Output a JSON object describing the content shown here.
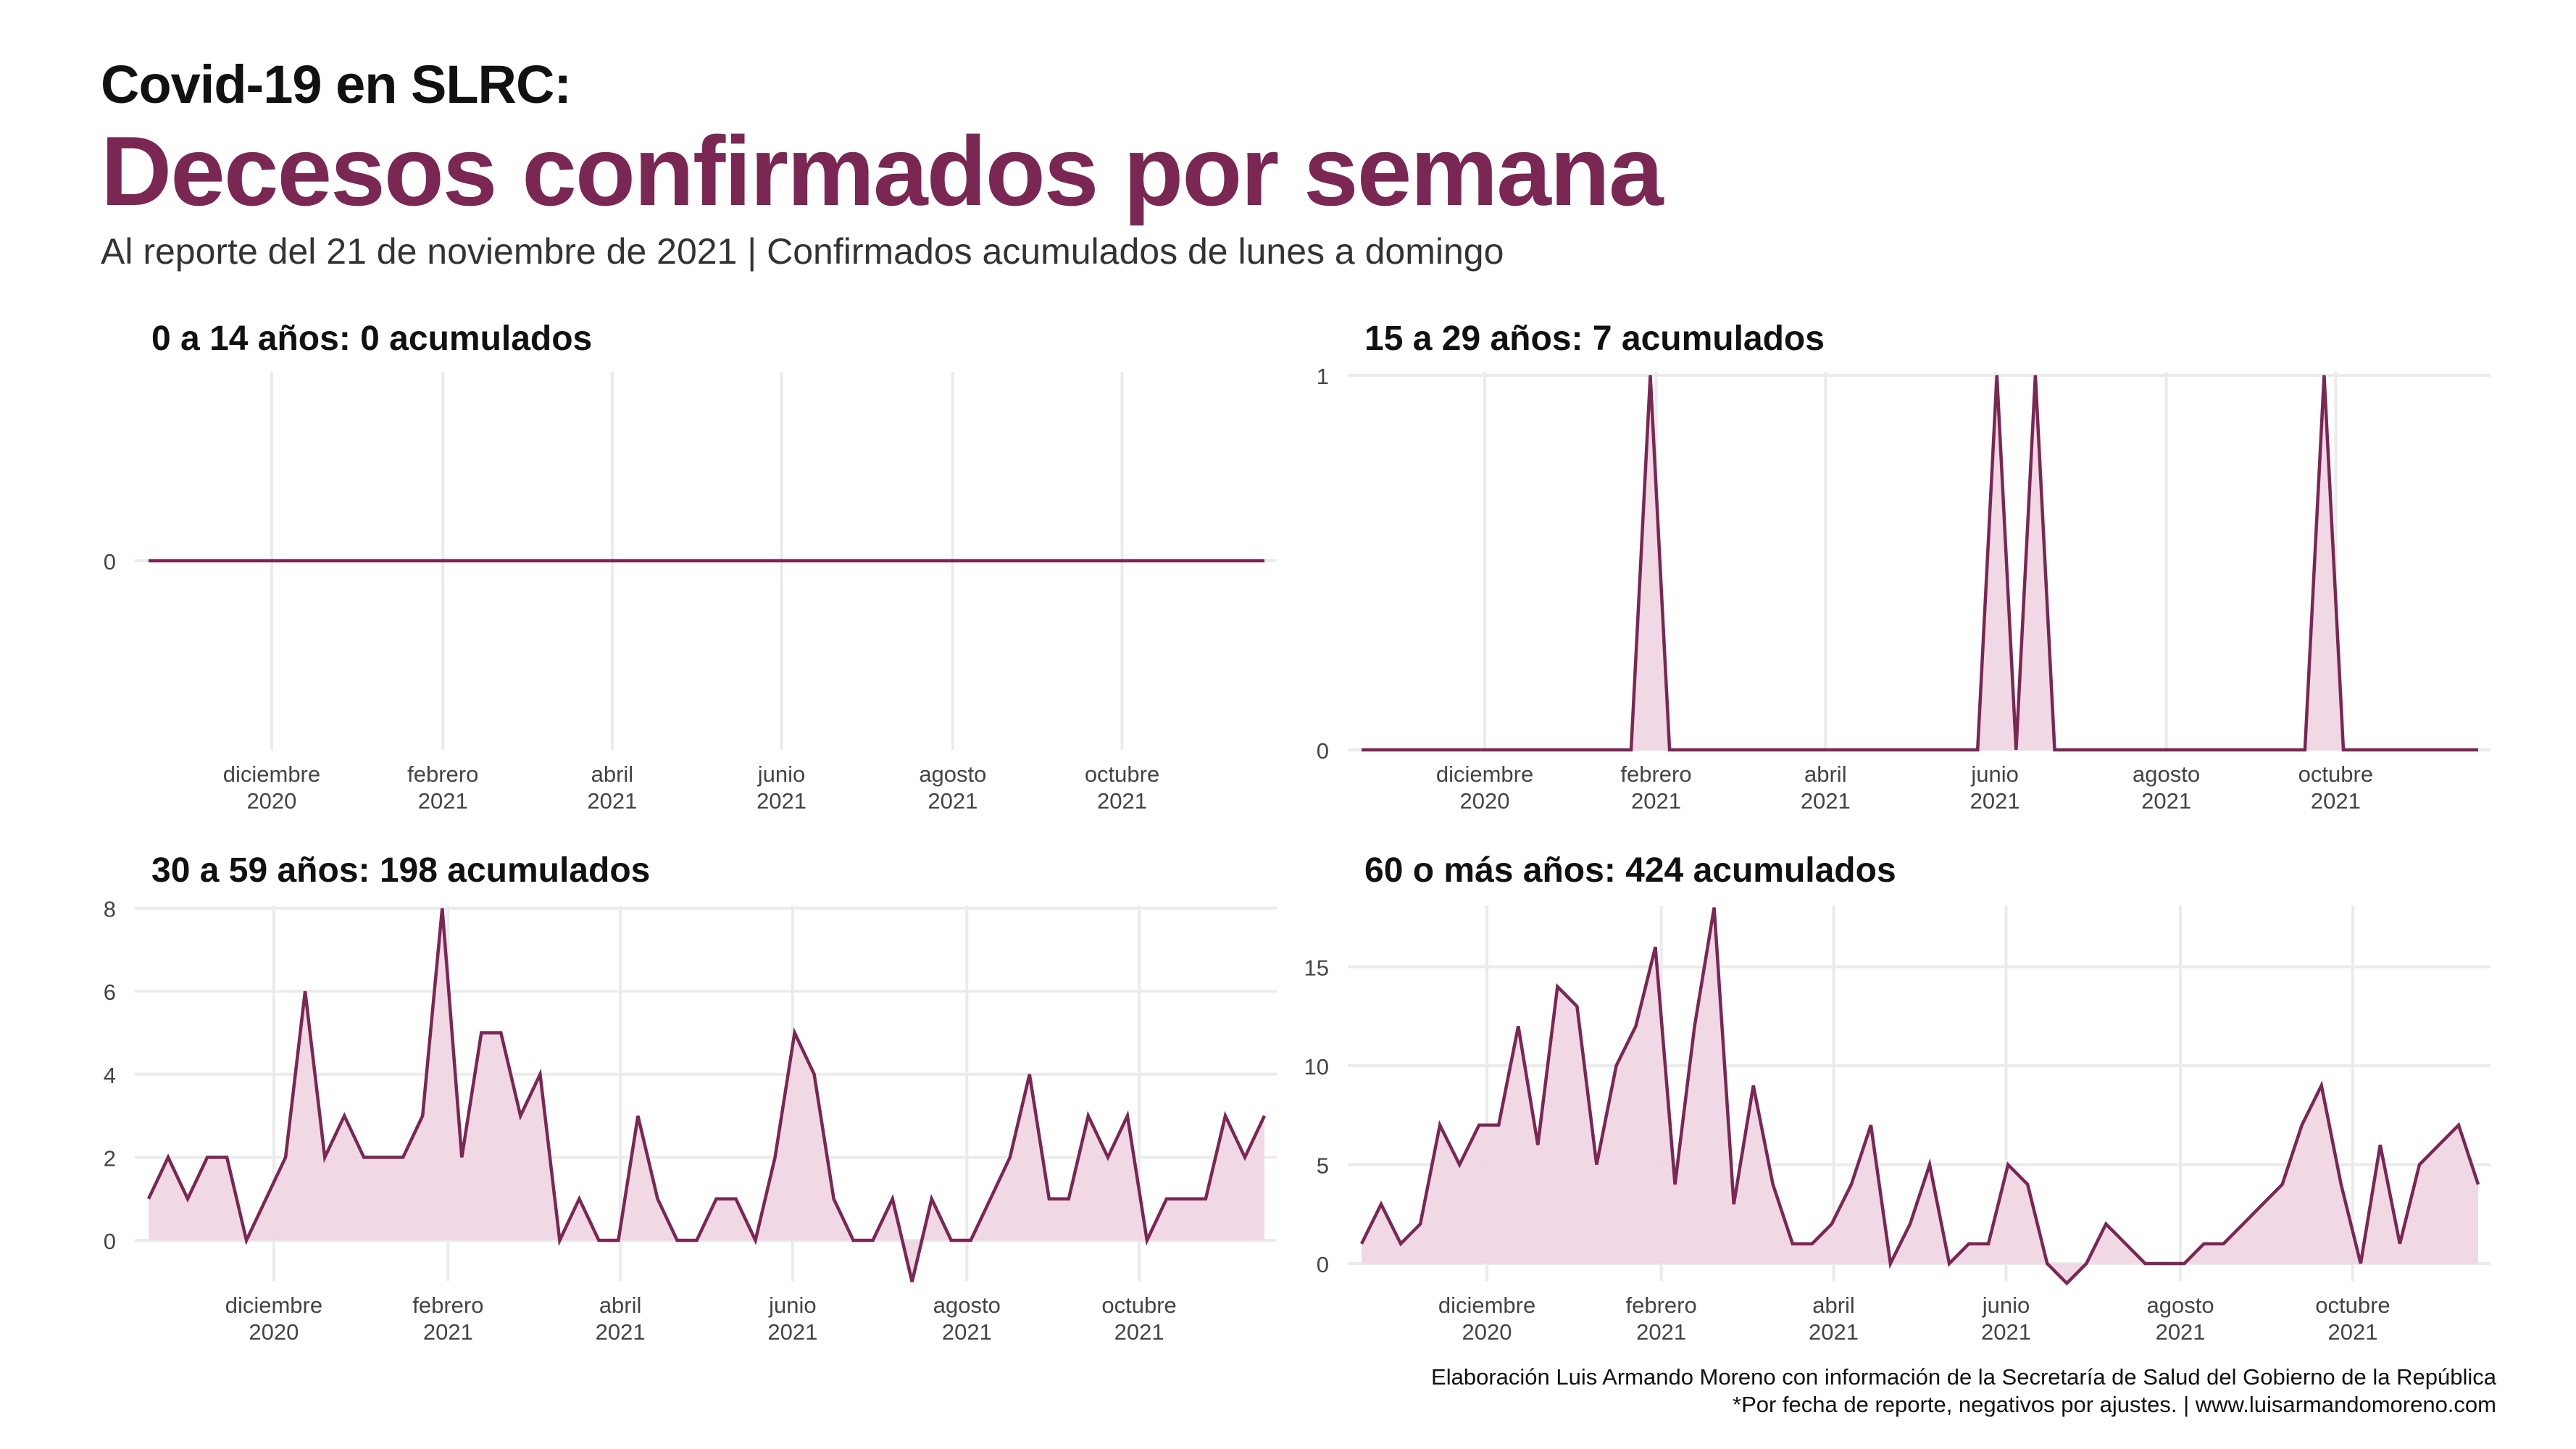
{
  "header": {
    "pretitle": "Covid-19 en SLRC:",
    "title": "Decesos confirmados por semana",
    "subtitle": "Al reporte del 21 de noviembre de 2021 | Confirmados acumulados de lunes a domingo"
  },
  "footer": {
    "line1": "Elaboración Luis Armando Moreno con información de la Secretaría de Salud del Gobierno de la República",
    "line2": "*Por fecha de reporte, negativos por ajustes. | www.luisarmandomoreno.com"
  },
  "colors": {
    "accent": "#7a2754",
    "fill": "#f0d6e4",
    "grid": "#ebebeb"
  },
  "chart_data": [
    {
      "type": "area",
      "title": "0 a 14 años: 0 acumulados",
      "x_axis": {
        "ticks": [
          {
            "week": 6.4,
            "month": "diciembre",
            "year": "2020"
          },
          {
            "week": 15.3,
            "month": "febrero",
            "year": "2021"
          },
          {
            "week": 24.1,
            "month": "abril",
            "year": "2021"
          },
          {
            "week": 32.9,
            "month": "junio",
            "year": "2021"
          },
          {
            "week": 41.8,
            "month": "agosto",
            "year": "2021"
          },
          {
            "week": 50.6,
            "month": "octubre",
            "year": "2021"
          }
        ]
      },
      "y_ticks": [
        0
      ],
      "ylim": [
        -1,
        1
      ],
      "values": [
        0,
        0,
        0,
        0,
        0,
        0,
        0,
        0,
        0,
        0,
        0,
        0,
        0,
        0,
        0,
        0,
        0,
        0,
        0,
        0,
        0,
        0,
        0,
        0,
        0,
        0,
        0,
        0,
        0,
        0,
        0,
        0,
        0,
        0,
        0,
        0,
        0,
        0,
        0,
        0,
        0,
        0,
        0,
        0,
        0,
        0,
        0,
        0,
        0,
        0,
        0,
        0,
        0,
        0,
        0,
        0,
        0,
        0,
        0
      ]
    },
    {
      "type": "area",
      "title": "15 a 29 años: 7 acumulados",
      "x_axis": {
        "ticks": [
          {
            "week": 6.4,
            "month": "diciembre",
            "year": "2020"
          },
          {
            "week": 15.3,
            "month": "febrero",
            "year": "2021"
          },
          {
            "week": 24.1,
            "month": "abril",
            "year": "2021"
          },
          {
            "week": 32.9,
            "month": "junio",
            "year": "2021"
          },
          {
            "week": 41.8,
            "month": "agosto",
            "year": "2021"
          },
          {
            "week": 50.6,
            "month": "octubre",
            "year": "2021"
          }
        ]
      },
      "y_ticks": [
        0,
        1
      ],
      "ylim": [
        0,
        1
      ],
      "values": [
        0,
        0,
        0,
        0,
        0,
        0,
        0,
        0,
        0,
        0,
        0,
        0,
        0,
        0,
        0,
        1,
        0,
        0,
        0,
        0,
        0,
        0,
        0,
        0,
        0,
        0,
        0,
        0,
        0,
        0,
        0,
        0,
        0,
        1,
        0,
        1,
        0,
        0,
        0,
        0,
        0,
        0,
        0,
        0,
        0,
        0,
        0,
        0,
        0,
        0,
        1,
        0,
        0,
        0,
        0,
        0,
        0,
        0,
        0
      ]
    },
    {
      "type": "area",
      "title": "30 a 59 años: 198 acumulados",
      "x_axis": {
        "ticks": [
          {
            "week": 6.4,
            "month": "diciembre",
            "year": "2020"
          },
          {
            "week": 15.3,
            "month": "febrero",
            "year": "2021"
          },
          {
            "week": 24.1,
            "month": "abril",
            "year": "2021"
          },
          {
            "week": 32.9,
            "month": "junio",
            "year": "2021"
          },
          {
            "week": 41.8,
            "month": "agosto",
            "year": "2021"
          },
          {
            "week": 50.6,
            "month": "octubre",
            "year": "2021"
          }
        ]
      },
      "y_ticks": [
        0,
        2,
        4,
        6,
        8
      ],
      "ylim": [
        -1,
        8
      ],
      "values": [
        1,
        2,
        1,
        2,
        2,
        0,
        1,
        2,
        6,
        2,
        3,
        2,
        2,
        2,
        3,
        8,
        2,
        5,
        5,
        3,
        4,
        0,
        1,
        0,
        0,
        3,
        1,
        0,
        0,
        1,
        1,
        0,
        2,
        5,
        4,
        1,
        0,
        0,
        1,
        -1,
        1,
        0,
        0,
        1,
        2,
        4,
        1,
        1,
        3,
        2,
        3,
        0,
        1,
        1,
        1,
        3,
        2,
        3
      ]
    },
    {
      "type": "area",
      "title": "60 o más años: 424 acumulados",
      "x_axis": {
        "ticks": [
          {
            "week": 6.4,
            "month": "diciembre",
            "year": "2020"
          },
          {
            "week": 15.3,
            "month": "febrero",
            "year": "2021"
          },
          {
            "week": 24.1,
            "month": "abril",
            "year": "2021"
          },
          {
            "week": 32.9,
            "month": "junio",
            "year": "2021"
          },
          {
            "week": 41.8,
            "month": "agosto",
            "year": "2021"
          },
          {
            "week": 50.6,
            "month": "octubre",
            "year": "2021"
          }
        ]
      },
      "y_ticks": [
        0,
        5,
        10,
        15
      ],
      "ylim": [
        -1,
        18
      ],
      "values": [
        1,
        3,
        1,
        2,
        7,
        5,
        7,
        7,
        12,
        6,
        14,
        13,
        5,
        10,
        12,
        16,
        4,
        12,
        18,
        3,
        9,
        4,
        1,
        1,
        2,
        4,
        7,
        0,
        2,
        5,
        0,
        1,
        1,
        5,
        4,
        0,
        -1,
        0,
        2,
        1,
        0,
        0,
        0,
        1,
        1,
        2,
        3,
        4,
        7,
        9,
        4,
        0,
        6,
        1,
        5,
        6,
        7,
        4
      ]
    }
  ]
}
